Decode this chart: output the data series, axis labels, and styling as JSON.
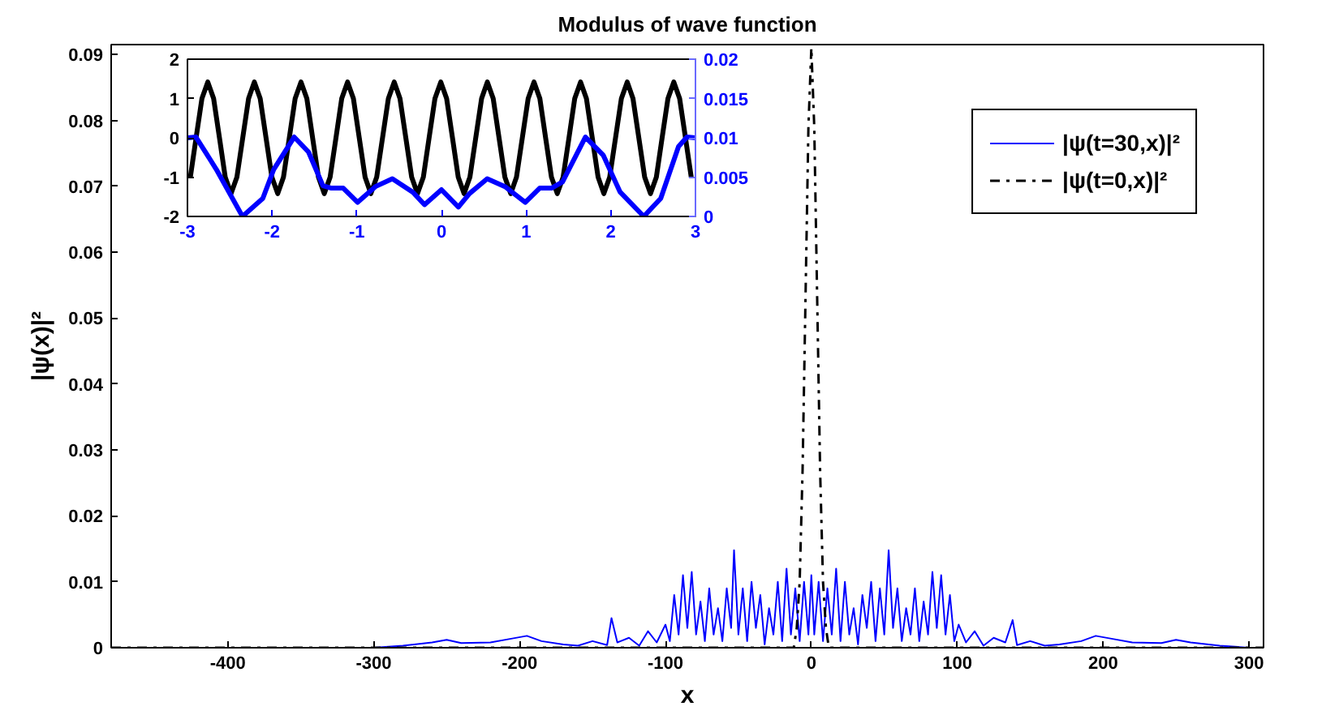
{
  "chart_data": [
    {
      "type": "line",
      "title": "Modulus of wave function",
      "xlabel": "x",
      "ylabel": "|ψ(x)|²",
      "xlim": [
        -480,
        310
      ],
      "ylim": [
        0,
        0.0915
      ],
      "xticks": [
        -400,
        -300,
        -200,
        -100,
        0,
        100,
        200,
        300
      ],
      "yticks": [
        0,
        0.01,
        0.02,
        0.03,
        0.04,
        0.05,
        0.06,
        0.07,
        0.08,
        0.09
      ],
      "grid": false,
      "legend": "top right",
      "series": [
        {
          "name": "|ψ(t=30,x)|²",
          "color": "#0000ff",
          "line_style": "solid",
          "x": [
            -480,
            -300,
            -280,
            -260,
            -250,
            -240,
            -220,
            -205,
            -195,
            -185,
            -170,
            -160,
            -150,
            -140,
            -137,
            -133,
            -125,
            -118,
            -112,
            -106,
            -100,
            -97,
            -94,
            -91,
            -88,
            -85,
            -82,
            -79,
            -76,
            -73,
            -70,
            -67,
            -64,
            -61,
            -58,
            -55,
            -53,
            -50,
            -47,
            -44,
            -41,
            -38,
            -35,
            -32,
            -29,
            -26,
            -23,
            -20,
            -17,
            -14,
            -11,
            -8,
            -5,
            -2,
            0,
            2,
            5,
            8,
            11,
            14,
            17,
            20,
            23,
            26,
            29,
            32,
            35,
            38,
            41,
            44,
            47,
            50,
            53,
            56,
            59,
            62,
            65,
            68,
            71,
            74,
            77,
            80,
            83,
            86,
            89,
            92,
            95,
            98,
            101,
            106,
            112,
            118,
            125,
            133,
            138,
            141,
            150,
            160,
            170,
            185,
            195,
            205,
            220,
            240,
            250,
            260,
            280,
            300,
            310
          ],
          "values": [
            0,
            0,
            0.0003,
            0.0008,
            0.0012,
            0.0007,
            0.0008,
            0.0014,
            0.0018,
            0.001,
            0.0005,
            0.0003,
            0.001,
            0.0004,
            0.0045,
            0.0008,
            0.0015,
            0.0003,
            0.0025,
            0.0008,
            0.0035,
            0.001,
            0.008,
            0.002,
            0.011,
            0.003,
            0.0115,
            0.002,
            0.007,
            0.001,
            0.009,
            0.002,
            0.006,
            0.001,
            0.009,
            0.003,
            0.0148,
            0.002,
            0.009,
            0.001,
            0.01,
            0.003,
            0.008,
            0.0005,
            0.006,
            0.002,
            0.01,
            0.001,
            0.012,
            0.002,
            0.009,
            0.001,
            0.01,
            0.002,
            0.011,
            0.002,
            0.01,
            0.001,
            0.009,
            0.002,
            0.012,
            0.001,
            0.01,
            0.002,
            0.006,
            0.0005,
            0.008,
            0.003,
            0.01,
            0.001,
            0.009,
            0.002,
            0.0148,
            0.003,
            0.009,
            0.001,
            0.006,
            0.002,
            0.009,
            0.001,
            0.007,
            0.002,
            0.0115,
            0.003,
            0.011,
            0.002,
            0.008,
            0.001,
            0.0035,
            0.0008,
            0.0025,
            0.0003,
            0.0015,
            0.0008,
            0.0042,
            0.0004,
            0.001,
            0.0003,
            0.0005,
            0.001,
            0.0018,
            0.0014,
            0.0008,
            0.0007,
            0.0012,
            0.0008,
            0.0003,
            0,
            0
          ]
        },
        {
          "name": "|ψ(t=0,x)|²",
          "color": "#000000",
          "line_style": "dashdot",
          "x": [
            -480,
            -12,
            -10,
            -8,
            -6,
            -4,
            -2,
            0,
            2,
            4,
            6,
            8,
            10,
            12,
            310
          ],
          "values": [
            0,
            0,
            0.003,
            0.01,
            0.027,
            0.053,
            0.079,
            0.091,
            0.079,
            0.053,
            0.027,
            0.01,
            0.003,
            0,
            0
          ]
        }
      ]
    },
    {
      "type": "line",
      "xlim": [
        -3,
        3
      ],
      "ylim": [
        -2,
        2
      ],
      "y2lim": [
        0,
        0.02
      ],
      "xticks": [
        -3,
        -2,
        -1,
        0,
        1,
        2,
        3
      ],
      "yticks": [
        -2,
        -1,
        0,
        1,
        2
      ],
      "y2ticks": [
        0,
        0.005,
        0.01,
        0.015,
        0.02
      ],
      "grid": false,
      "series": [
        {
          "color": "#000000",
          "x": [
            -2.966,
            -2.898,
            -2.829,
            -2.76,
            -2.691,
            -2.622,
            -2.554,
            -2.485,
            -2.416,
            -2.347,
            -2.278,
            -2.21,
            -2.141,
            -2.072,
            -2.003,
            -1.934,
            -1.866,
            -1.797,
            -1.728,
            -1.659,
            -1.59,
            -1.522,
            -1.453,
            -1.384,
            -1.315,
            -1.246,
            -1.178,
            -1.109,
            -1.04,
            -0.971,
            -0.902,
            -0.834,
            -0.765,
            -0.696,
            -0.627,
            -0.558,
            -0.49,
            -0.421,
            -0.352,
            -0.283,
            -0.214,
            -0.146,
            -0.077,
            -0.008,
            0.061,
            0.13,
            0.198,
            0.267,
            0.336,
            0.405,
            0.474,
            0.542,
            0.611,
            0.68,
            0.749,
            0.818,
            0.886,
            0.955,
            1.024,
            1.093,
            1.162,
            1.23,
            1.299,
            1.368,
            1.437,
            1.506,
            1.574,
            1.643,
            1.712,
            1.781,
            1.85,
            1.918,
            1.987,
            2.056,
            2.125,
            2.194,
            2.262,
            2.331,
            2.4,
            2.469,
            2.538,
            2.606,
            2.675,
            2.744,
            2.813,
            2.882,
            2.95
          ],
          "values": [
            -1.0,
            0,
            1.0,
            1.42,
            1.0,
            0,
            -1.0,
            -1.42,
            -1.0,
            0,
            1.0,
            1.42,
            1.0,
            0,
            -1.0,
            -1.42,
            -1.0,
            0,
            1.0,
            1.42,
            1.0,
            0,
            -1.0,
            -1.42,
            -1.0,
            0,
            1.0,
            1.42,
            1.0,
            0,
            -1.0,
            -1.42,
            -1.0,
            0,
            1.0,
            1.42,
            1.0,
            0,
            -1.0,
            -1.42,
            -1.0,
            0,
            1.0,
            1.42,
            1.0,
            0,
            -1.0,
            -1.42,
            -1.0,
            0,
            1.0,
            1.42,
            1.0,
            0,
            -1.0,
            -1.42,
            -1.0,
            0,
            1.0,
            1.42,
            1.0,
            0,
            -1.0,
            -1.42,
            -1.0,
            0,
            1.0,
            1.42,
            1.0,
            0,
            -1.0,
            -1.42,
            -1.0,
            0,
            1.0,
            1.42,
            1.0,
            0,
            -1.0,
            -1.42,
            -1.0,
            0,
            1.0,
            1.42,
            1.0,
            0,
            -1.0
          ]
        },
        {
          "color": "#0000ff",
          "axis": "y2",
          "x": [
            -3,
            -2.9,
            -2.66,
            -2.35,
            -2.11,
            -1.98,
            -1.74,
            -1.57,
            -1.4,
            -1.3,
            -1.16,
            -0.99,
            -0.78,
            -0.58,
            -0.34,
            -0.2,
            0,
            0.2,
            0.33,
            0.54,
            0.75,
            0.99,
            1.16,
            1.3,
            1.43,
            1.7,
            1.91,
            2.11,
            2.39,
            2.59,
            2.8,
            2.9,
            3
          ],
          "values": [
            0.01,
            0.0101,
            0.006,
            0,
            0.0023,
            0.006,
            0.0101,
            0.0082,
            0.0039,
            0.0036,
            0.0036,
            0.0018,
            0.0038,
            0.0048,
            0.0031,
            0.0015,
            0.0034,
            0.0012,
            0.0029,
            0.0048,
            0.0038,
            0.0018,
            0.0036,
            0.0036,
            0.0044,
            0.0101,
            0.0078,
            0.0031,
            0,
            0.0023,
            0.0089,
            0.0101,
            0.01
          ]
        }
      ]
    }
  ]
}
